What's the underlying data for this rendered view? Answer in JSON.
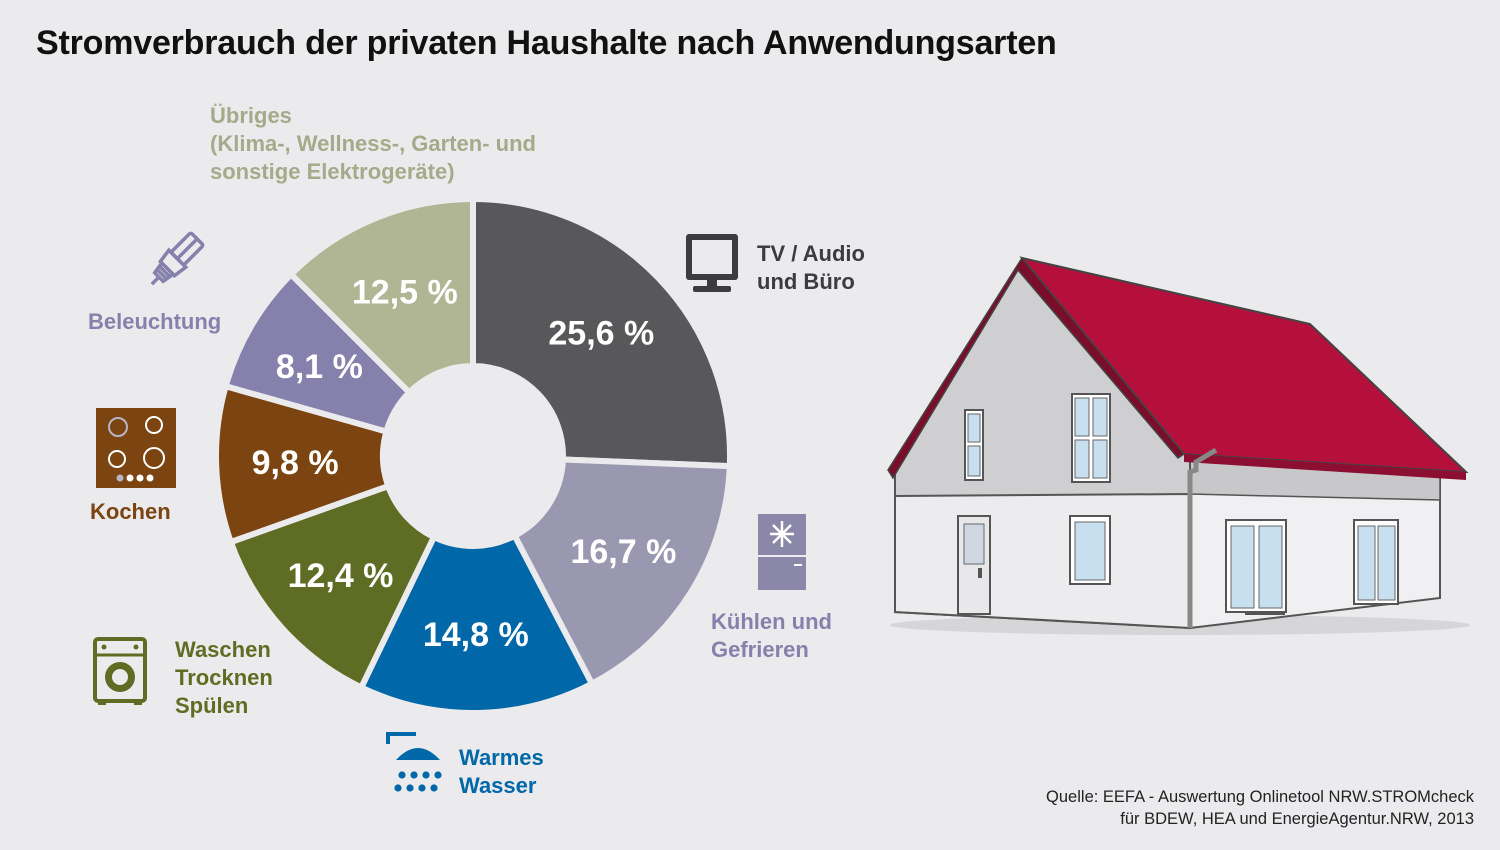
{
  "title": "Stromverbrauch der privaten Haushalte nach Anwendungsarten",
  "source": {
    "line1": "Quelle: EEFA - Auswertung Onlinetool NRW.STROMcheck",
    "line2": "für BDEW, HEA und EnergieAgentur.NRW, 2013"
  },
  "labels": {
    "tv": [
      "TV / Audio",
      "und Büro"
    ],
    "kuehlen": [
      "Kühlen und",
      "Gefrieren"
    ],
    "wasser": [
      "Warmes",
      "Wasser"
    ],
    "waschen": [
      "Waschen",
      "Trocknen",
      "Spülen"
    ],
    "kochen": [
      "Kochen"
    ],
    "beleuchtung": [
      "Beleuchtung"
    ],
    "uebriges": [
      "Übriges",
      "(Klima-, Wellness-, Garten- und",
      "sonstige Elektrogeräte)"
    ]
  },
  "icons": {
    "tv": "tv-monitor-icon",
    "kuehlen": "fridge-icon",
    "wasser": "shower-icon",
    "waschen": "washing-machine-icon",
    "kochen": "stove-icon",
    "beleuchtung": "light-bulb-icon",
    "house": "house-illustration"
  },
  "chart_data": {
    "type": "pie",
    "donut": true,
    "title": "Stromverbrauch der privaten Haushalte nach Anwendungsarten",
    "slices": [
      {
        "label": "TV/Audio und Büro",
        "value": 25.6,
        "display": "25,6 %",
        "color": "#58585a"
      },
      {
        "label": "Kühlen und Gefrieren",
        "value": 16.7,
        "display": "16,7 %",
        "color": "#9a98b0"
      },
      {
        "label": "Warmes Wasser",
        "value": 14.8,
        "display": "14,8 %",
        "color": "#0068a8"
      },
      {
        "label": "Waschen Trocknen Spülen",
        "value": 12.4,
        "display": "12,4 %",
        "color": "#5f6d24"
      },
      {
        "label": "Kochen",
        "value": 9.8,
        "display": "9,8 %",
        "color": "#7c4410"
      },
      {
        "label": "Beleuchtung",
        "value": 8.1,
        "display": "8,1 %",
        "color": "#8581ac"
      },
      {
        "label": "Übriges (Klima-, Wellness-, Garten- und sonstige Elektrogeräte)",
        "value": 12.5,
        "display": "12,5 %",
        "color": "#b0b593"
      }
    ]
  }
}
